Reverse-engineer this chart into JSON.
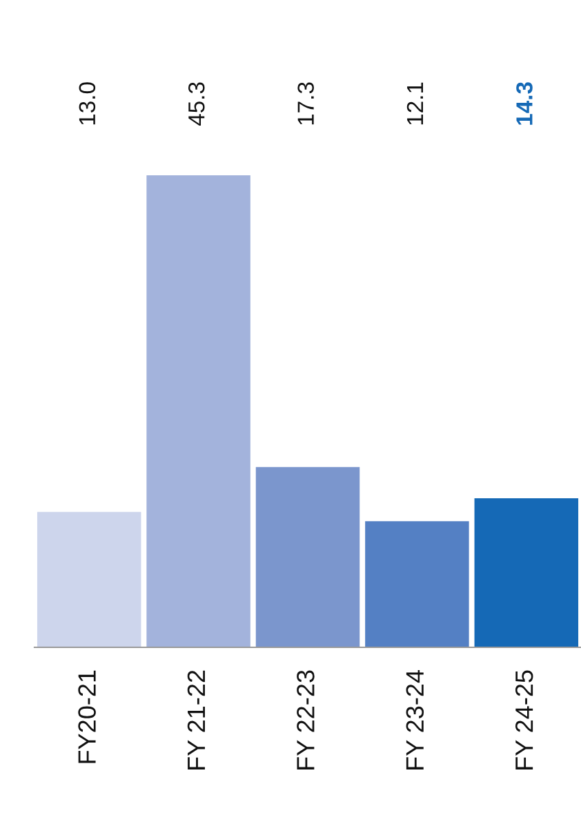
{
  "chart_data": {
    "type": "bar",
    "categories": [
      "FY20-21",
      "FY 21-22",
      "FY 22-23",
      "FY 23-24",
      "FY 24-25"
    ],
    "values": [
      13.0,
      45.3,
      17.3,
      12.1,
      14.3
    ],
    "value_labels": [
      "13.0",
      "45.3",
      "17.3",
      "12.1",
      "14.3"
    ],
    "colors": [
      "#cdd5ec",
      "#a3b3dc",
      "#7b96cd",
      "#5480c4",
      "#1569b6"
    ]
  }
}
